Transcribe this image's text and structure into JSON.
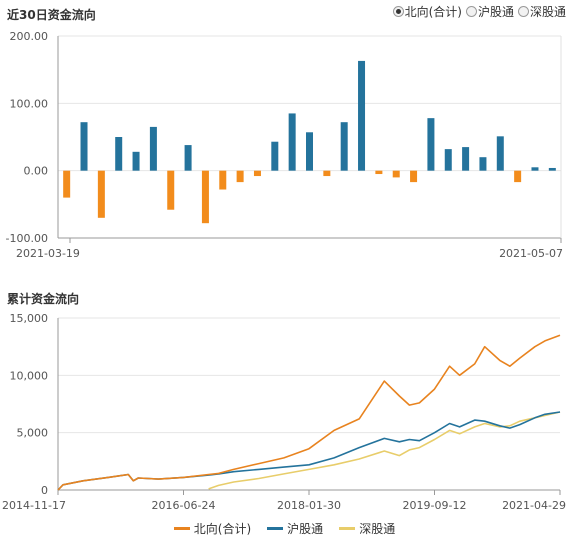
{
  "top_chart": {
    "title": "近30日资金流向",
    "radio_options": [
      {
        "label": "北向(合计)",
        "checked": true
      },
      {
        "label": "沪股通",
        "checked": false
      },
      {
        "label": "深股通",
        "checked": false
      }
    ]
  },
  "bottom_chart": {
    "title": "累计资金流向"
  },
  "colors": {
    "positive": "#24739c",
    "negative": "#f28c1c",
    "north": "#e8831f",
    "sh": "#24739c",
    "sz": "#e8cd6a",
    "grid": "#e6e6e6"
  },
  "chart_data": [
    {
      "type": "bar",
      "title": "近30日资金流向",
      "ylim": [
        -100,
        200
      ],
      "yticks": [
        "200.00",
        "100.00",
        "0.00",
        "-100.00"
      ],
      "ytick_values": [
        200,
        100,
        0,
        -100
      ],
      "x_start_label": "2021-03-19",
      "x_end_label": "2021-05-07",
      "values": [
        -40,
        72,
        -70,
        50,
        28,
        65,
        -58,
        38,
        -78,
        -28,
        -17,
        -8,
        43,
        85,
        57,
        -8,
        72,
        163,
        -5,
        -10,
        -17,
        78,
        32,
        35,
        20,
        51,
        -17,
        5,
        4
      ]
    },
    {
      "type": "line",
      "title": "累计资金流向",
      "ylim": [
        0,
        15000
      ],
      "yticks": [
        "15,000",
        "10,000",
        "5,000",
        "0"
      ],
      "ytick_values": [
        15000,
        10000,
        5000,
        0
      ],
      "x_ticks": [
        "2014-11-17",
        "2016-06-24",
        "2018-01-30",
        "2019-09-12",
        "2021-04-29"
      ],
      "x": [
        0,
        0.01,
        0.05,
        0.1,
        0.14,
        0.15,
        0.16,
        0.2,
        0.25,
        0.3,
        0.32,
        0.35,
        0.4,
        0.45,
        0.5,
        0.55,
        0.6,
        0.65,
        0.68,
        0.7,
        0.72,
        0.75,
        0.78,
        0.8,
        0.83,
        0.85,
        0.88,
        0.9,
        0.92,
        0.95,
        0.97,
        1.0
      ],
      "series": [
        {
          "name": "北向(合计)",
          "values": [
            0,
            450,
            800,
            1100,
            1350,
            800,
            1050,
            950,
            1100,
            1350,
            1450,
            1800,
            2300,
            2800,
            3600,
            5200,
            6200,
            9500,
            8200,
            7400,
            7600,
            8800,
            10800,
            10000,
            11000,
            12500,
            11300,
            10800,
            11500,
            12500,
            13000,
            13500
          ]
        },
        {
          "name": "沪股通",
          "values": [
            0,
            450,
            800,
            1100,
            1350,
            800,
            1050,
            950,
            1100,
            1300,
            1400,
            1600,
            1800,
            2000,
            2200,
            2800,
            3700,
            4500,
            4200,
            4400,
            4300,
            5000,
            5800,
            5500,
            6100,
            6000,
            5600,
            5400,
            5700,
            6300,
            6600,
            6800
          ]
        },
        {
          "name": "深股通",
          "values": [
            null,
            null,
            null,
            null,
            null,
            null,
            null,
            null,
            null,
            100,
            400,
            700,
            1000,
            1400,
            1800,
            2200,
            2700,
            3400,
            3000,
            3500,
            3700,
            4400,
            5200,
            4900,
            5500,
            5800,
            5500,
            5600,
            6000,
            6300,
            6500,
            6800
          ]
        }
      ]
    }
  ],
  "icons": {
    "radio": "radio-icon"
  }
}
